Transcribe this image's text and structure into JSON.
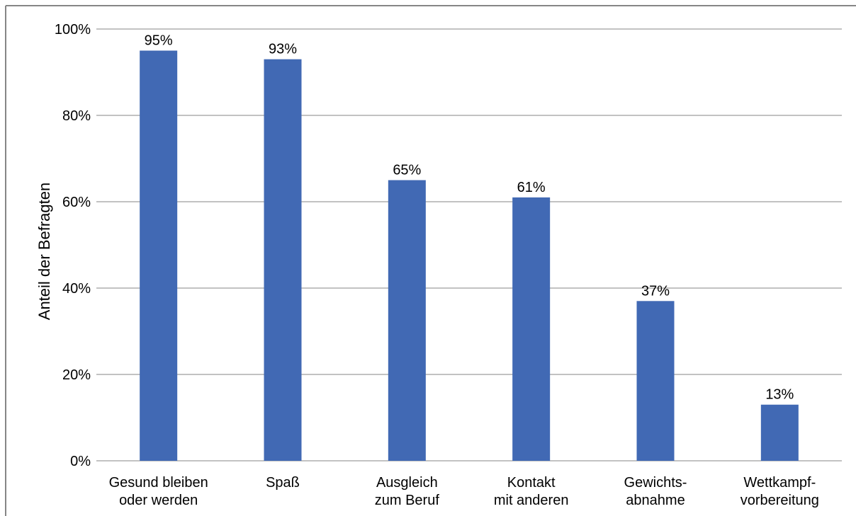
{
  "chart_data": {
    "type": "bar",
    "title": "",
    "xlabel": "",
    "ylabel": "Anteil der Befragten",
    "ylim": [
      0,
      100
    ],
    "yticks": [
      0,
      20,
      40,
      60,
      80,
      100
    ],
    "ytick_labels": [
      "0%",
      "20%",
      "40%",
      "60%",
      "80%",
      "100%"
    ],
    "grid": true,
    "legend": "none",
    "categories": [
      [
        "Gesund bleiben",
        "oder werden"
      ],
      [
        "Spaß"
      ],
      [
        "Ausgleich",
        "zum Beruf"
      ],
      [
        "Kontakt",
        "mit anderen"
      ],
      [
        "Gewichts-",
        "abnahme"
      ],
      [
        "Wettkampf-",
        "vorbereitung"
      ]
    ],
    "values": [
      95,
      93,
      65,
      61,
      37,
      13
    ],
    "value_labels": [
      "95%",
      "93%",
      "65%",
      "61%",
      "37%",
      "13%"
    ],
    "colors": {
      "bar": "#4169b4",
      "grid": "#868686",
      "border": "#868686",
      "text": "#000000"
    }
  }
}
